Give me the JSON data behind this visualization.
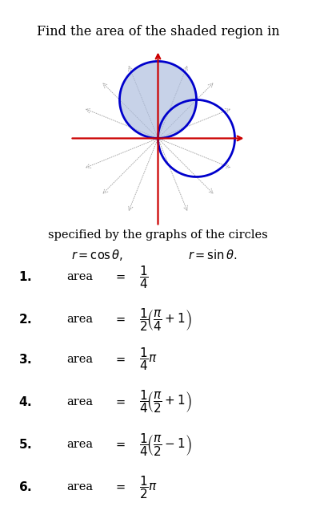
{
  "title_top": "Find the area of the shaded region in",
  "subtitle": "specified by the graphs of the circles",
  "plot_bg": "#fffff0",
  "outer_bg": "#ffffff",
  "circle_color": "#0000cc",
  "circle_linewidth": 2.0,
  "shaded_color": "#aabbdd",
  "shaded_alpha": 0.65,
  "axis_color": "#cc0000",
  "ray_color": "#aaaaaa",
  "ray_angles_deg": [
    22,
    45,
    68,
    112,
    135,
    158,
    202,
    225,
    248,
    292,
    315,
    338
  ],
  "fig_width": 3.95,
  "fig_height": 6.57,
  "dpi": 100
}
